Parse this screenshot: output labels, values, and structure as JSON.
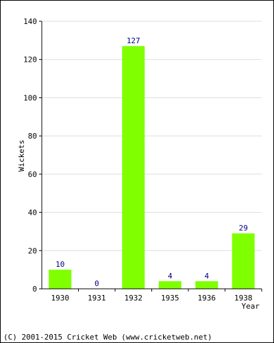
{
  "chart_data": {
    "type": "bar",
    "title": "",
    "xlabel": "Year",
    "ylabel": "Wickets",
    "categories": [
      "1930",
      "1931",
      "1932",
      "1935",
      "1936",
      "1938"
    ],
    "values": [
      10,
      0,
      127,
      4,
      4,
      29
    ],
    "ylim": [
      0,
      140
    ],
    "yticks": [
      0,
      20,
      40,
      60,
      80,
      100,
      120,
      140
    ],
    "grid": true,
    "legend": "none",
    "colors": {
      "bar": "#80ff00",
      "data_label": "#000080",
      "grid": "#dddddd",
      "axis": "#000000"
    }
  },
  "footer": {
    "copyright": "(C) 2001-2015 Cricket Web (www.cricketweb.net)"
  }
}
